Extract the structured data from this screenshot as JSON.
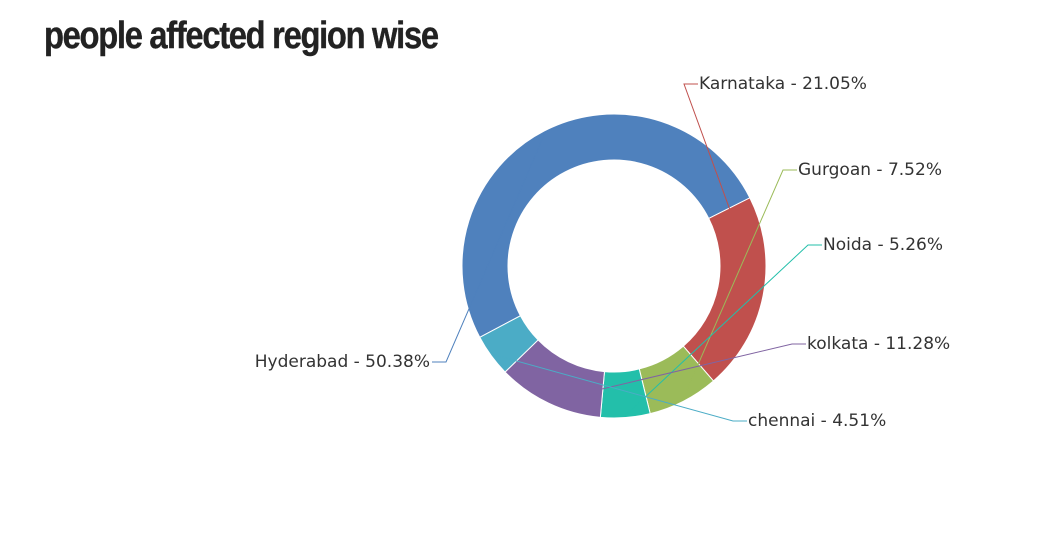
{
  "chart_data": {
    "type": "pie",
    "variant": "donut",
    "title": "people affected region wise",
    "label_separator": " - ",
    "slices": [
      {
        "name": "Hyderabad",
        "value": 50.38,
        "label": "50.38%",
        "color": "#4f81bd"
      },
      {
        "name": "Karnataka",
        "value": 21.05,
        "label": "21.05%",
        "color": "#c0504d"
      },
      {
        "name": "Gurgoan",
        "value": 7.52,
        "label": "7.52%",
        "color": "#9bbb59"
      },
      {
        "name": "Noida",
        "value": 5.26,
        "label": "5.26%",
        "color": "#23bfaa"
      },
      {
        "name": "kolkata",
        "value": 11.28,
        "label": "11.28%",
        "color": "#8064a2"
      },
      {
        "name": "chennai",
        "value": 4.51,
        "label": "4.51%",
        "color": "#4bacc6"
      }
    ]
  }
}
